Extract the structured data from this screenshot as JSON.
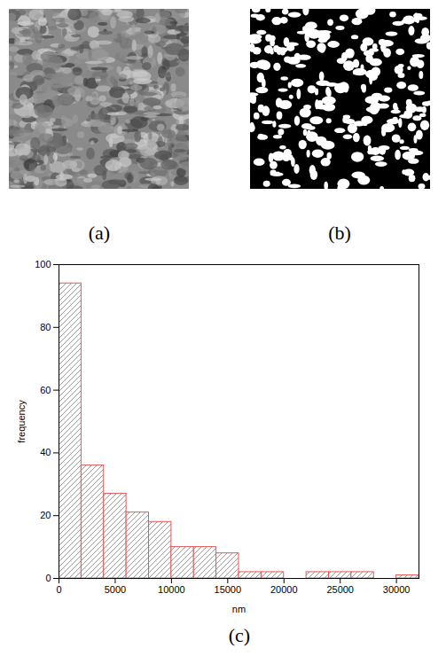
{
  "panel_labels": [
    "(a)",
    "(b)",
    "(c)"
  ],
  "chart_data": {
    "type": "histogram",
    "bins": [
      0,
      2000,
      4000,
      6000,
      8000,
      10000,
      12000,
      14000,
      16000,
      18000,
      20000,
      22000,
      24000,
      26000,
      28000,
      30000,
      32000
    ],
    "values": [
      94,
      36,
      27,
      21,
      18,
      10,
      10,
      8,
      2,
      2,
      0,
      2,
      2,
      2,
      0,
      1
    ],
    "color": "#e05a5a",
    "x_label": "nm",
    "y_label": "frequency",
    "xlim": [
      0,
      32000
    ],
    "xticks": [
      0,
      5000,
      10000,
      15000,
      20000,
      25000,
      30000
    ],
    "ylim": [
      0,
      100
    ],
    "yticks": [
      0,
      20,
      40,
      60,
      80,
      100
    ],
    "grid": false
  }
}
